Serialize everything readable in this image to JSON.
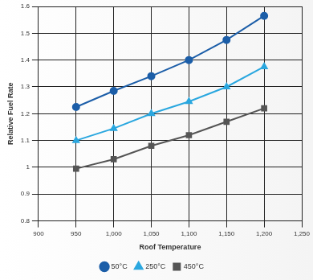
{
  "chart_data": {
    "type": "line",
    "x_label": "Roof Temperature",
    "y_label": "Relative Fuel Rate",
    "series": [
      {
        "name": "50°C",
        "color": "#1c5ea8",
        "marker": "circle",
        "x": [
          950,
          1000,
          1050,
          1100,
          1150,
          1200
        ],
        "values": [
          1.225,
          1.285,
          1.34,
          1.4,
          1.475,
          1.565
        ]
      },
      {
        "name": "250°C",
        "color": "#2aa7df",
        "marker": "triangle",
        "x": [
          950,
          1000,
          1050,
          1100,
          1150,
          1200
        ],
        "values": [
          1.1,
          1.145,
          1.2,
          1.245,
          1.3,
          1.375
        ]
      },
      {
        "name": "450°C",
        "color": "#555555",
        "marker": "square",
        "x": [
          950,
          1000,
          1050,
          1100,
          1150,
          1200
        ],
        "values": [
          0.995,
          1.03,
          1.08,
          1.12,
          1.17,
          1.22
        ]
      }
    ],
    "xlim": [
      900,
      1250
    ],
    "xticks": [
      900,
      950,
      {
        "value": 1000,
        "label": "1,000"
      },
      {
        "value": 1050,
        "label": "1,050"
      },
      {
        "value": 1100,
        "label": "1,100"
      },
      {
        "value": 1150,
        "label": "1,150"
      },
      {
        "value": 1200,
        "label": "1,200"
      },
      {
        "value": 1250,
        "label": "1,250"
      }
    ],
    "ylim": [
      0.8,
      1.6
    ],
    "yticks": [
      0.8,
      0.9,
      1,
      1.1,
      1.2,
      1.3,
      1.4,
      1.5,
      1.6
    ],
    "grid": true,
    "legend": "bottom"
  }
}
